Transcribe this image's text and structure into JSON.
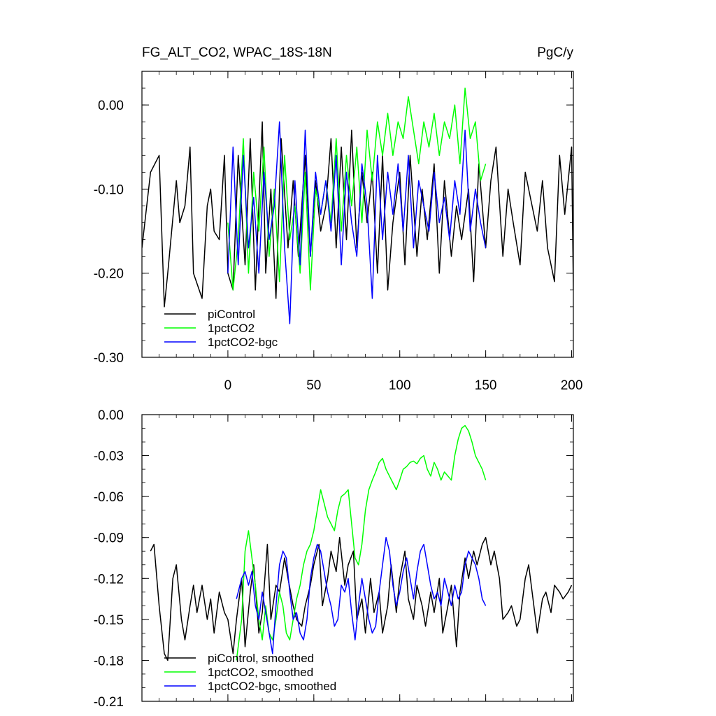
{
  "chart_data": [
    {
      "type": "line",
      "title_left": "FG_ALT_CO2, WPAC_18S-18N",
      "title_right": "PgC/y",
      "xlim": [
        -50,
        201
      ],
      "ylim": [
        -0.3,
        0.04
      ],
      "x_ticks": [
        0,
        50,
        100,
        150,
        200
      ],
      "x_tick_labels": [
        "0",
        "50",
        "100",
        "150",
        "200"
      ],
      "y_ticks": [
        0.0,
        -0.1,
        -0.2,
        -0.3
      ],
      "y_tick_labels": [
        "0.00",
        "-0.10",
        "-0.20",
        "-0.30"
      ],
      "legend": [
        "piControl",
        "1pctCO2",
        "1pctCO2-bgc"
      ],
      "series": [
        {
          "name": "piControl",
          "color": "#000000",
          "x": [
            -50,
            -45,
            -40,
            -37,
            -35,
            -30,
            -28,
            -25,
            -22,
            -20,
            -15,
            -12,
            -10,
            -8,
            -5,
            -2,
            0,
            3,
            6,
            10,
            13,
            16,
            20,
            22,
            25,
            28,
            31,
            35,
            38,
            41,
            45,
            48,
            51,
            54,
            57,
            60,
            63,
            66,
            69,
            72,
            75,
            78,
            81,
            84,
            87,
            90,
            93,
            96,
            100,
            103,
            106,
            110,
            113,
            116,
            120,
            123,
            126,
            130,
            133,
            136,
            140,
            143,
            146,
            150,
            153,
            156,
            160,
            163,
            166,
            170,
            173,
            176,
            180,
            183,
            186,
            190,
            193,
            196,
            200,
            201
          ],
          "y": [
            -0.17,
            -0.08,
            -0.06,
            -0.24,
            -0.2,
            -0.09,
            -0.14,
            -0.12,
            -0.05,
            -0.2,
            -0.23,
            -0.12,
            -0.1,
            -0.15,
            -0.16,
            -0.06,
            -0.2,
            -0.22,
            -0.06,
            -0.19,
            -0.04,
            -0.22,
            -0.02,
            -0.2,
            -0.1,
            -0.23,
            -0.04,
            -0.17,
            -0.09,
            -0.18,
            -0.06,
            -0.18,
            -0.09,
            -0.15,
            -0.12,
            -0.04,
            -0.17,
            -0.05,
            -0.16,
            -0.03,
            -0.17,
            -0.08,
            -0.14,
            -0.08,
            -0.2,
            -0.06,
            -0.22,
            -0.14,
            -0.08,
            -0.19,
            -0.06,
            -0.18,
            -0.1,
            -0.16,
            -0.07,
            -0.2,
            -0.09,
            -0.18,
            -0.12,
            -0.16,
            -0.1,
            -0.21,
            -0.07,
            -0.17,
            -0.09,
            -0.05,
            -0.18,
            -0.1,
            -0.14,
            -0.19,
            -0.08,
            -0.11,
            -0.15,
            -0.09,
            -0.17,
            -0.21,
            -0.06,
            -0.13,
            -0.05,
            -0.22
          ]
        },
        {
          "name": "1pctCO2",
          "color": "#00ff00",
          "x": [
            0,
            3,
            6,
            9,
            12,
            15,
            18,
            21,
            24,
            27,
            30,
            33,
            36,
            39,
            42,
            45,
            48,
            51,
            54,
            57,
            60,
            63,
            66,
            69,
            72,
            75,
            78,
            81,
            84,
            87,
            90,
            93,
            96,
            99,
            102,
            105,
            108,
            111,
            114,
            117,
            120,
            123,
            126,
            129,
            132,
            135,
            138,
            141,
            144,
            147,
            150
          ],
          "y": [
            -0.14,
            -0.22,
            -0.16,
            -0.04,
            -0.2,
            -0.08,
            -0.15,
            -0.05,
            -0.18,
            -0.1,
            -0.21,
            -0.06,
            -0.16,
            -0.12,
            -0.2,
            -0.08,
            -0.22,
            -0.1,
            -0.13,
            -0.09,
            -0.14,
            -0.04,
            -0.15,
            -0.06,
            -0.12,
            -0.05,
            -0.14,
            -0.03,
            -0.09,
            -0.02,
            -0.06,
            -0.01,
            -0.06,
            -0.02,
            -0.04,
            0.01,
            -0.03,
            -0.07,
            -0.02,
            -0.05,
            -0.01,
            -0.06,
            -0.02,
            -0.04,
            0.0,
            -0.07,
            0.02,
            -0.04,
            -0.02,
            -0.09,
            -0.07
          ]
        },
        {
          "name": "1pctCO2-bgc",
          "color": "#0000ff",
          "x": [
            0,
            3,
            6,
            9,
            12,
            15,
            18,
            21,
            24,
            27,
            30,
            33,
            36,
            39,
            42,
            45,
            48,
            51,
            54,
            57,
            60,
            63,
            66,
            69,
            72,
            75,
            78,
            81,
            84,
            87,
            90,
            93,
            96,
            99,
            102,
            105,
            108,
            111,
            114,
            117,
            120,
            123,
            126,
            129,
            132,
            135,
            138,
            141,
            144,
            147,
            150
          ],
          "y": [
            -0.2,
            -0.05,
            -0.19,
            -0.06,
            -0.17,
            -0.11,
            -0.2,
            -0.08,
            -0.16,
            -0.12,
            -0.02,
            -0.17,
            -0.26,
            -0.09,
            -0.19,
            -0.03,
            -0.18,
            -0.08,
            -0.13,
            -0.09,
            -0.15,
            -0.06,
            -0.19,
            -0.08,
            -0.14,
            -0.18,
            -0.07,
            -0.12,
            -0.23,
            -0.06,
            -0.16,
            -0.08,
            -0.13,
            -0.07,
            -0.15,
            -0.06,
            -0.17,
            -0.09,
            -0.12,
            -0.15,
            -0.08,
            -0.14,
            -0.11,
            -0.16,
            -0.09,
            -0.13,
            -0.03,
            -0.15,
            -0.1,
            -0.14,
            -0.17
          ]
        }
      ]
    },
    {
      "type": "line",
      "xlim": [
        -50,
        201
      ],
      "ylim": [
        -0.21,
        0.0
      ],
      "x_ticks": [
        0,
        50,
        100,
        150,
        200
      ],
      "y_ticks": [
        0.0,
        -0.03,
        -0.06,
        -0.09,
        -0.12,
        -0.15,
        -0.18,
        -0.21
      ],
      "y_tick_labels": [
        "0.00",
        "-0.03",
        "-0.06",
        "-0.09",
        "-0.12",
        "-0.15",
        "-0.18",
        "-0.21"
      ],
      "legend": [
        "piControl, smoothed",
        "1pctCO2, smoothed",
        "1pctCO2-bgc, smoothed"
      ],
      "series": [
        {
          "name": "piControl, smoothed",
          "color": "#000000",
          "x": [
            -45,
            -43,
            -40,
            -37,
            -35,
            -32,
            -30,
            -27,
            -25,
            -22,
            -20,
            -18,
            -15,
            -12,
            -10,
            -8,
            -5,
            -2,
            0,
            3,
            5,
            8,
            10,
            13,
            15,
            18,
            20,
            23,
            25,
            28,
            30,
            33,
            35,
            38,
            40,
            43,
            45,
            48,
            50,
            53,
            55,
            58,
            60,
            63,
            65,
            68,
            70,
            73,
            75,
            78,
            80,
            83,
            85,
            88,
            90,
            93,
            95,
            98,
            100,
            103,
            105,
            108,
            110,
            113,
            115,
            118,
            120,
            123,
            125,
            128,
            130,
            133,
            135,
            138,
            140,
            143,
            145,
            148,
            150,
            153,
            155,
            158,
            160,
            163,
            165,
            168,
            170,
            173,
            175,
            178,
            180,
            183,
            185,
            188,
            190,
            193,
            195,
            198,
            200
          ],
          "y": [
            -0.1,
            -0.095,
            -0.14,
            -0.175,
            -0.18,
            -0.12,
            -0.11,
            -0.15,
            -0.165,
            -0.14,
            -0.125,
            -0.145,
            -0.125,
            -0.15,
            -0.135,
            -0.16,
            -0.13,
            -0.145,
            -0.15,
            -0.175,
            -0.15,
            -0.12,
            -0.17,
            -0.13,
            -0.11,
            -0.16,
            -0.145,
            -0.095,
            -0.15,
            -0.125,
            -0.13,
            -0.105,
            -0.12,
            -0.14,
            -0.15,
            -0.155,
            -0.14,
            -0.125,
            -0.11,
            -0.095,
            -0.14,
            -0.12,
            -0.1,
            -0.115,
            -0.09,
            -0.125,
            -0.11,
            -0.1,
            -0.15,
            -0.135,
            -0.16,
            -0.12,
            -0.145,
            -0.13,
            -0.16,
            -0.14,
            -0.11,
            -0.145,
            -0.12,
            -0.1,
            -0.135,
            -0.15,
            -0.125,
            -0.14,
            -0.155,
            -0.13,
            -0.145,
            -0.12,
            -0.16,
            -0.14,
            -0.125,
            -0.17,
            -0.13,
            -0.105,
            -0.12,
            -0.1,
            -0.11,
            -0.095,
            -0.09,
            -0.11,
            -0.1,
            -0.12,
            -0.15,
            -0.145,
            -0.14,
            -0.155,
            -0.15,
            -0.12,
            -0.11,
            -0.14,
            -0.16,
            -0.135,
            -0.13,
            -0.145,
            -0.125,
            -0.13,
            -0.135,
            -0.13,
            -0.125
          ]
        },
        {
          "name": "1pctCO2, smoothed",
          "color": "#00ff00",
          "x": [
            5,
            8,
            10,
            12,
            14,
            16,
            18,
            20,
            22,
            24,
            26,
            28,
            30,
            32,
            34,
            36,
            38,
            40,
            42,
            44,
            46,
            48,
            50,
            52,
            54,
            56,
            58,
            60,
            62,
            64,
            66,
            68,
            70,
            72,
            74,
            76,
            78,
            80,
            82,
            84,
            86,
            88,
            90,
            92,
            94,
            96,
            98,
            100,
            102,
            104,
            106,
            108,
            110,
            112,
            114,
            116,
            118,
            120,
            122,
            124,
            126,
            128,
            130,
            132,
            134,
            136,
            138,
            140,
            142,
            144,
            146,
            148,
            150
          ],
          "y": [
            -0.18,
            -0.15,
            -0.1,
            -0.085,
            -0.105,
            -0.125,
            -0.15,
            -0.165,
            -0.14,
            -0.16,
            -0.165,
            -0.15,
            -0.13,
            -0.14,
            -0.16,
            -0.165,
            -0.15,
            -0.135,
            -0.125,
            -0.11,
            -0.1,
            -0.095,
            -0.085,
            -0.07,
            -0.055,
            -0.065,
            -0.075,
            -0.08,
            -0.085,
            -0.07,
            -0.06,
            -0.058,
            -0.055,
            -0.08,
            -0.105,
            -0.11,
            -0.095,
            -0.07,
            -0.055,
            -0.048,
            -0.042,
            -0.035,
            -0.032,
            -0.04,
            -0.045,
            -0.05,
            -0.055,
            -0.048,
            -0.04,
            -0.038,
            -0.035,
            -0.034,
            -0.036,
            -0.032,
            -0.03,
            -0.04,
            -0.045,
            -0.035,
            -0.04,
            -0.048,
            -0.042,
            -0.045,
            -0.048,
            -0.03,
            -0.018,
            -0.01,
            -0.008,
            -0.012,
            -0.02,
            -0.03,
            -0.035,
            -0.04,
            -0.048
          ]
        },
        {
          "name": "1pctCO2-bgc, smoothed",
          "color": "#0000ff",
          "x": [
            5,
            8,
            10,
            12,
            14,
            16,
            18,
            20,
            22,
            24,
            26,
            28,
            30,
            32,
            34,
            36,
            38,
            40,
            42,
            44,
            46,
            48,
            50,
            52,
            54,
            56,
            58,
            60,
            62,
            64,
            66,
            68,
            70,
            72,
            74,
            76,
            78,
            80,
            82,
            84,
            86,
            88,
            90,
            92,
            94,
            96,
            98,
            100,
            102,
            104,
            106,
            108,
            110,
            112,
            114,
            116,
            118,
            120,
            122,
            124,
            126,
            128,
            130,
            132,
            134,
            136,
            138,
            140,
            142,
            144,
            146,
            148,
            150
          ],
          "y": [
            -0.135,
            -0.12,
            -0.115,
            -0.125,
            -0.115,
            -0.14,
            -0.15,
            -0.13,
            -0.145,
            -0.16,
            -0.175,
            -0.14,
            -0.11,
            -0.1,
            -0.105,
            -0.13,
            -0.15,
            -0.145,
            -0.16,
            -0.165,
            -0.15,
            -0.12,
            -0.105,
            -0.095,
            -0.1,
            -0.115,
            -0.13,
            -0.14,
            -0.155,
            -0.15,
            -0.125,
            -0.13,
            -0.12,
            -0.145,
            -0.165,
            -0.14,
            -0.12,
            -0.135,
            -0.15,
            -0.16,
            -0.155,
            -0.13,
            -0.11,
            -0.09,
            -0.1,
            -0.125,
            -0.14,
            -0.13,
            -0.115,
            -0.105,
            -0.12,
            -0.135,
            -0.115,
            -0.1,
            -0.095,
            -0.11,
            -0.125,
            -0.135,
            -0.13,
            -0.14,
            -0.12,
            -0.13,
            -0.14,
            -0.125,
            -0.135,
            -0.13,
            -0.11,
            -0.1,
            -0.105,
            -0.11,
            -0.12,
            -0.135,
            -0.14
          ]
        }
      ]
    }
  ]
}
